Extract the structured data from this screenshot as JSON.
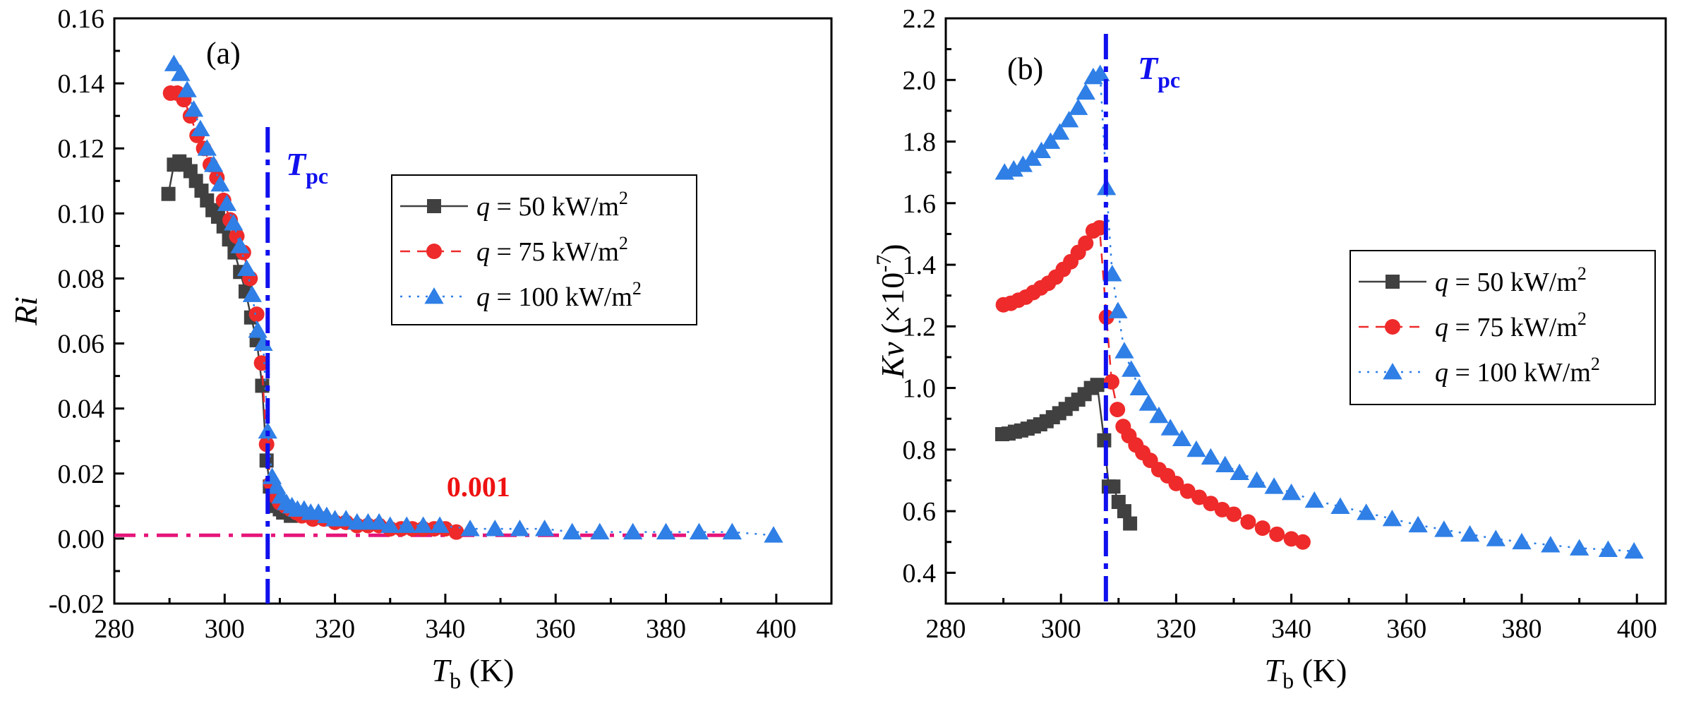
{
  "colors": {
    "series50": "#404040",
    "series75": "#ee2a2a",
    "series100": "#2f7fe6",
    "tpc_line": "#1010ee",
    "threshold_line": "#e6157a",
    "annotation": "#ee1111"
  },
  "chart_data": [
    {
      "type": "scatter",
      "panel_label": "(a)",
      "ylabel_main": "Ri",
      "xlabel_main": "T",
      "xlabel_sub": "b",
      "xlabel_unit": " (K)",
      "xlim": [
        280,
        410
      ],
      "ylim": [
        -0.02,
        0.16
      ],
      "xticks": [
        "280",
        "300",
        "320",
        "340",
        "360",
        "380",
        "400"
      ],
      "yticks": [
        "-0.02",
        "0.00",
        "0.02",
        "0.04",
        "0.06",
        "0.08",
        "0.10",
        "0.12",
        "0.14",
        "0.16"
      ],
      "tpc": {
        "x": 307.8,
        "label_main": "T",
        "label_sub": "pc"
      },
      "threshold": {
        "y": 0.001,
        "x_start": 280,
        "x_end": 392,
        "label": "0.001",
        "label_x": 346,
        "label_y": 0.013
      },
      "legend": {
        "position": "center-right",
        "entries": [
          {
            "series": "s50",
            "prefix": "q",
            "text": " = 50 kW/m",
            "sup": "2"
          },
          {
            "series": "s75",
            "prefix": "q",
            "text": " = 75 kW/m",
            "sup": "2"
          },
          {
            "series": "s100",
            "prefix": "q",
            "text": " = 100 kW/m",
            "sup": "2"
          }
        ]
      },
      "series": [
        {
          "id": "s50",
          "name": "q = 50 kW/m2",
          "marker": "square",
          "line": "solid",
          "x": [
            289.8,
            290.8,
            291.8,
            292.8,
            293.8,
            294.8,
            295.8,
            296.8,
            297.8,
            298.8,
            299.8,
            300.8,
            301.8,
            302.8,
            303.8,
            304.8,
            305.8,
            306.8,
            307.6,
            308.2,
            308.8,
            309.4,
            310.0,
            310.6,
            311.2,
            312.0
          ],
          "y": [
            0.106,
            0.115,
            0.116,
            0.115,
            0.113,
            0.11,
            0.107,
            0.104,
            0.101,
            0.099,
            0.096,
            0.092,
            0.088,
            0.082,
            0.076,
            0.068,
            0.061,
            0.047,
            0.024,
            0.016,
            0.012,
            0.01,
            0.009,
            0.008,
            0.008,
            0.007
          ]
        },
        {
          "id": "s75",
          "name": "q = 75 kW/m2",
          "marker": "circle",
          "line": "dashed",
          "x": [
            290.2,
            291.4,
            292.6,
            293.8,
            295.0,
            296.2,
            297.4,
            298.6,
            299.8,
            301.0,
            302.2,
            303.4,
            304.6,
            305.8,
            306.7,
            307.6,
            308.4,
            309.2,
            310.0,
            311.0,
            312.0,
            313.0,
            314.0,
            316.0,
            318.0,
            320.0,
            322.0,
            324.0,
            326.0,
            328.0,
            330.0,
            332.0,
            334.0,
            336.0,
            338.0,
            340.0,
            342.0
          ],
          "y": [
            0.137,
            0.137,
            0.135,
            0.13,
            0.124,
            0.12,
            0.115,
            0.111,
            0.104,
            0.098,
            0.093,
            0.088,
            0.08,
            0.069,
            0.054,
            0.029,
            0.017,
            0.013,
            0.011,
            0.01,
            0.009,
            0.008,
            0.007,
            0.006,
            0.006,
            0.005,
            0.005,
            0.004,
            0.004,
            0.004,
            0.003,
            0.003,
            0.003,
            0.003,
            0.003,
            0.003,
            0.002
          ]
        },
        {
          "id": "s100",
          "name": "q = 100 kW/m2",
          "marker": "triangle",
          "line": "dotted",
          "x": [
            290.8,
            292.0,
            293.2,
            294.4,
            295.6,
            296.8,
            298.0,
            299.2,
            300.4,
            301.6,
            302.8,
            304.0,
            305.0,
            306.0,
            307.0,
            307.8,
            308.6,
            309.4,
            310.2,
            311.2,
            312.2,
            313.2,
            314.4,
            315.6,
            317.0,
            318.5,
            320.0,
            322.0,
            324.0,
            326.0,
            328.0,
            330.0,
            333.0,
            336.0,
            339.0,
            344.5,
            349.0,
            353.5,
            358.0,
            363.0,
            368.0,
            374.0,
            380.0,
            386.0,
            392.0,
            399.5
          ],
          "y": [
            0.146,
            0.143,
            0.138,
            0.132,
            0.126,
            0.12,
            0.115,
            0.109,
            0.103,
            0.097,
            0.09,
            0.083,
            0.075,
            0.064,
            0.06,
            0.033,
            0.019,
            0.016,
            0.013,
            0.011,
            0.01,
            0.009,
            0.009,
            0.008,
            0.008,
            0.007,
            0.006,
            0.006,
            0.005,
            0.005,
            0.005,
            0.004,
            0.004,
            0.004,
            0.004,
            0.003,
            0.003,
            0.003,
            0.003,
            0.002,
            0.002,
            0.002,
            0.002,
            0.002,
            0.002,
            0.001
          ]
        }
      ]
    },
    {
      "type": "scatter",
      "panel_label": "(b)",
      "ylabel_main": "Kv",
      "ylabel_unit": " (×10",
      "ylabel_sup": "-7",
      "ylabel_close": ")",
      "xlabel_main": "T",
      "xlabel_sub": "b",
      "xlabel_unit": " (K)",
      "xlim": [
        280,
        405
      ],
      "ylim": [
        0.3,
        2.2
      ],
      "xticks": [
        "280",
        "300",
        "320",
        "340",
        "360",
        "380",
        "400"
      ],
      "yticks": [
        "0.4",
        "0.6",
        "0.8",
        "1.0",
        "1.2",
        "1.4",
        "1.6",
        "1.8",
        "2.0",
        "2.2"
      ],
      "tpc": {
        "x": 307.8,
        "label_main": "T",
        "label_sub": "pc"
      },
      "legend": {
        "position": "center-right",
        "entries": [
          {
            "series": "t50",
            "prefix": "q",
            "text": " = 50 kW/m",
            "sup": "2"
          },
          {
            "series": "t75",
            "prefix": "q",
            "text": " = 75 kW/m",
            "sup": "2"
          },
          {
            "series": "t100",
            "prefix": "q",
            "text": " = 100 kW/m",
            "sup": "2"
          }
        ]
      },
      "series": [
        {
          "id": "t50",
          "name": "q = 50 kW/m2",
          "marker": "square",
          "line": "solid",
          "x": [
            289.8,
            290.9,
            292.0,
            293.1,
            294.2,
            295.3,
            296.4,
            297.5,
            298.6,
            299.7,
            300.8,
            301.9,
            303.0,
            304.1,
            305.2,
            306.3,
            307.5,
            308.3,
            309.1,
            310.0,
            311.0,
            312.0
          ],
          "y": [
            0.85,
            0.852,
            0.858,
            0.862,
            0.868,
            0.875,
            0.882,
            0.892,
            0.905,
            0.918,
            0.932,
            0.948,
            0.962,
            0.98,
            1.0,
            1.01,
            0.83,
            0.68,
            0.68,
            0.63,
            0.6,
            0.56
          ]
        },
        {
          "id": "t75",
          "name": "q = 75 kW/m2",
          "marker": "circle",
          "line": "dashed",
          "x": [
            290.0,
            291.3,
            292.6,
            293.9,
            295.2,
            296.5,
            297.8,
            299.1,
            300.4,
            301.7,
            303.0,
            304.3,
            305.6,
            306.7,
            307.9,
            308.8,
            309.8,
            310.8,
            311.8,
            313.0,
            314.2,
            315.5,
            317.0,
            318.5,
            320.0,
            322.0,
            324.0,
            326.0,
            328.0,
            330.0,
            332.5,
            335.0,
            337.5,
            340.0,
            342.0
          ],
          "y": [
            1.27,
            1.275,
            1.285,
            1.295,
            1.31,
            1.325,
            1.34,
            1.36,
            1.385,
            1.41,
            1.44,
            1.47,
            1.51,
            1.52,
            1.23,
            1.02,
            0.93,
            0.875,
            0.845,
            0.815,
            0.79,
            0.765,
            0.735,
            0.715,
            0.69,
            0.665,
            0.645,
            0.625,
            0.605,
            0.59,
            0.565,
            0.545,
            0.525,
            0.51,
            0.5
          ]
        },
        {
          "id": "t100",
          "name": "q = 100 kW/m2",
          "marker": "triangle",
          "line": "dotted",
          "x": [
            290.2,
            291.8,
            293.4,
            295.0,
            296.6,
            298.2,
            299.8,
            301.4,
            303.0,
            304.3,
            305.6,
            306.8,
            307.9,
            308.9,
            309.9,
            311.0,
            312.2,
            313.6,
            315.2,
            317.0,
            319.0,
            321.0,
            323.5,
            326.0,
            328.5,
            331.0,
            334.0,
            337.0,
            340.0,
            344.0,
            348.5,
            353.0,
            357.5,
            362.0,
            366.5,
            371.0,
            375.5,
            380.0,
            385.0,
            390.0,
            395.0,
            399.5
          ],
          "y": [
            1.7,
            1.71,
            1.725,
            1.745,
            1.77,
            1.8,
            1.83,
            1.87,
            1.91,
            1.96,
            2.01,
            2.02,
            1.65,
            1.37,
            1.25,
            1.12,
            1.06,
            1.0,
            0.95,
            0.91,
            0.87,
            0.835,
            0.8,
            0.775,
            0.75,
            0.725,
            0.7,
            0.68,
            0.66,
            0.635,
            0.615,
            0.595,
            0.575,
            0.555,
            0.54,
            0.525,
            0.51,
            0.5,
            0.49,
            0.48,
            0.475,
            0.47
          ]
        }
      ]
    }
  ]
}
